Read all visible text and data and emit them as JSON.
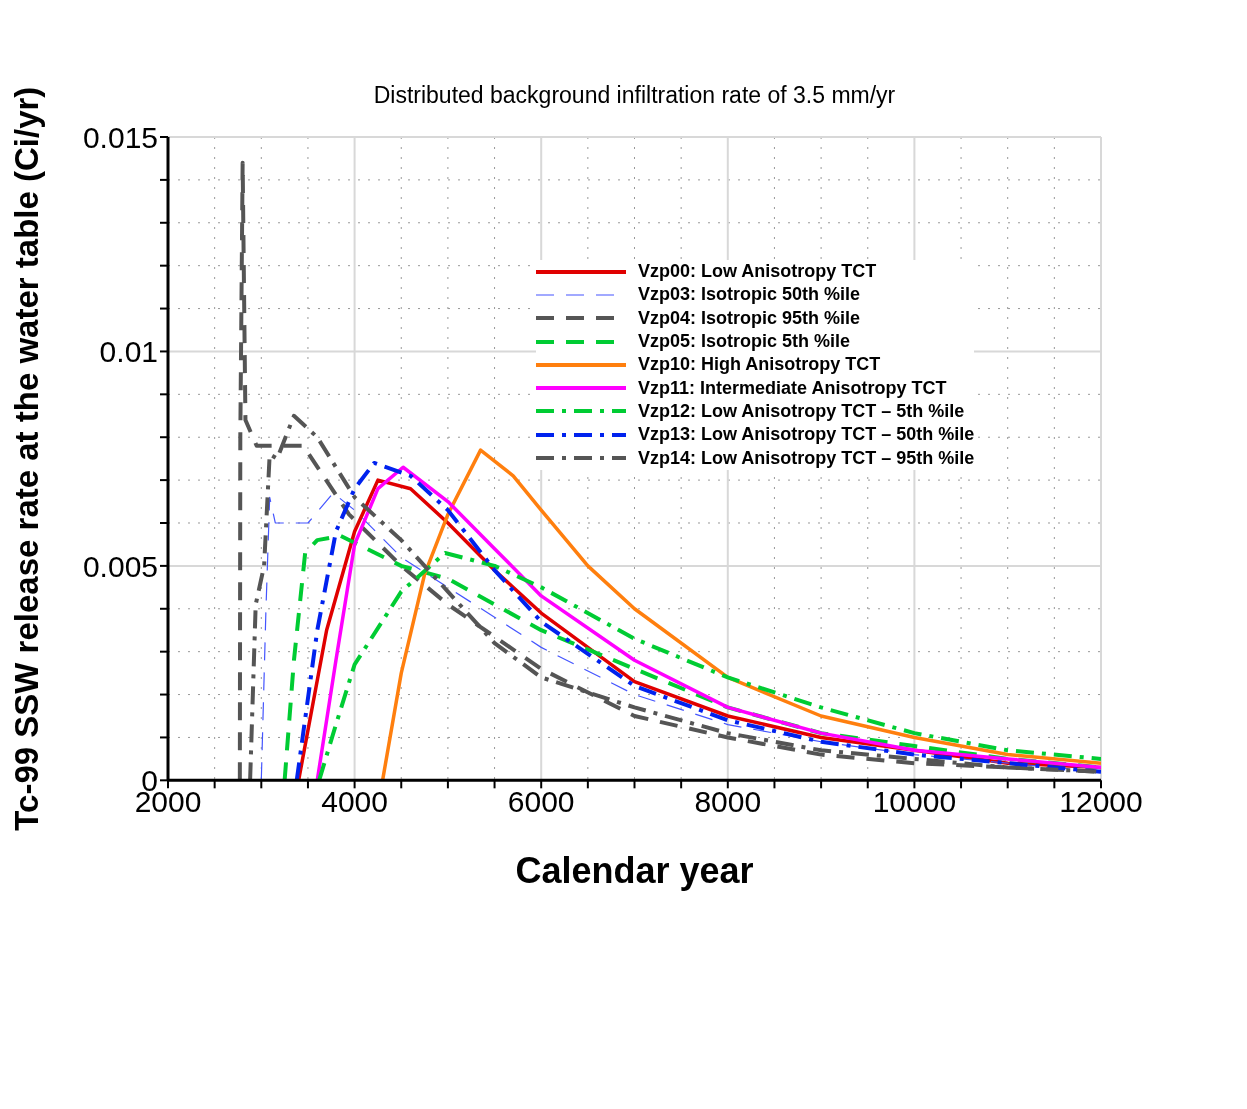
{
  "chart_data": {
    "type": "line",
    "title": "Distributed background infiltration rate of 3.5 mm/yr",
    "xlabel": "Calendar year",
    "ylabel": "Tc-99 SSW release rate at the water table (Ci/yr)",
    "xlim": [
      2000,
      12000
    ],
    "xticks": [
      2000,
      {
        "value": 2500,
        "label": null
      },
      {
        "value": 3000,
        "label": null
      },
      {
        "value": 3500,
        "label": null
      },
      4000,
      {
        "value": 4500,
        "label": null
      },
      {
        "value": 5000,
        "label": null
      },
      {
        "value": 5500,
        "label": null
      },
      6000,
      {
        "value": 6500,
        "label": null
      },
      {
        "value": 7000,
        "label": null
      },
      {
        "value": 7500,
        "label": null
      },
      8000,
      {
        "value": 8500,
        "label": null
      },
      {
        "value": 9000,
        "label": null
      },
      {
        "value": 9500,
        "label": null
      },
      10000,
      {
        "value": 10500,
        "label": null
      },
      {
        "value": 11000,
        "label": null
      },
      {
        "value": 11500,
        "label": null
      },
      12000
    ],
    "ylim": [
      0,
      0.015
    ],
    "yticks": [
      0,
      {
        "value": 0.001,
        "label": null
      },
      {
        "value": 0.002,
        "label": null
      },
      {
        "value": 0.003,
        "label": null
      },
      {
        "value": 0.004,
        "label": null
      },
      0.005,
      {
        "value": 0.006,
        "label": null
      },
      {
        "value": 0.007,
        "label": null
      },
      {
        "value": 0.008,
        "label": null
      },
      {
        "value": 0.009,
        "label": null
      },
      0.01,
      {
        "value": 0.011,
        "label": null
      },
      {
        "value": 0.012,
        "label": null
      },
      {
        "value": 0.013,
        "label": null
      },
      {
        "value": 0.014,
        "label": null
      },
      0.015
    ],
    "grid": true,
    "legend": "top right",
    "marker": "none",
    "series": [
      {
        "name": "Vzp00: Low Anisotropy TCT",
        "color": "#e00000",
        "line_style": "solid",
        "x": [
          3400,
          3700,
          4000,
          4250,
          4600,
          5000,
          5500,
          6000,
          7000,
          8000,
          9000,
          10000,
          11000,
          12000
        ],
        "values": [
          0,
          0.0035,
          0.0058,
          0.007,
          0.0068,
          0.006,
          0.0049,
          0.0039,
          0.0023,
          0.0015,
          0.001,
          0.0007,
          0.0004,
          0.0003
        ]
      },
      {
        "name": "Vzp03: Isotropic 50th %ile",
        "color": "#4455ff",
        "line_style": "dashed",
        "x": [
          3000,
          3050,
          3090,
          3150,
          3500,
          3770,
          4000,
          4500,
          5000,
          6000,
          7000,
          8000,
          9000,
          10000,
          11000,
          12000
        ],
        "values": [
          0,
          0.004,
          0.0066,
          0.006,
          0.006,
          0.0067,
          0.0063,
          0.0052,
          0.0045,
          0.0031,
          0.002,
          0.0013,
          0.0009,
          0.0006,
          0.0004,
          0.0002
        ]
      },
      {
        "name": "Vzp04: Isotropic 95th %ile",
        "color": "#555555",
        "line_style": "dashed",
        "x": [
          2770,
          2775,
          2800,
          2830,
          2950,
          3150,
          3450,
          3940,
          4500,
          5000,
          6000,
          7000,
          8000,
          9000,
          10000,
          11000,
          12000
        ],
        "values": [
          0,
          0.008,
          0.0144,
          0.0084,
          0.0078,
          0.0078,
          0.0078,
          0.0062,
          0.005,
          0.0041,
          0.0026,
          0.0015,
          0.001,
          0.0006,
          0.0004,
          0.0003,
          0.0002
        ]
      },
      {
        "name": "Vzp05: Isotropic 5th %ile",
        "color": "#00cc33",
        "line_style": "dashed",
        "x": [
          3250,
          3350,
          3470,
          3600,
          3850,
          4500,
          5000,
          6000,
          7000,
          8000,
          9000,
          10000,
          11000,
          12000
        ],
        "values": [
          0,
          0.0028,
          0.0053,
          0.0056,
          0.0057,
          0.005,
          0.0047,
          0.0035,
          0.0026,
          0.0017,
          0.0011,
          0.0008,
          0.0005,
          0.0003
        ]
      },
      {
        "name": "Vzp10: High Anisotropy TCT",
        "color": "#ff7f0e",
        "line_style": "solid",
        "x": [
          4300,
          4500,
          4750,
          5000,
          5350,
          5700,
          6000,
          6500,
          7000,
          8000,
          9000,
          10000,
          11000,
          12000
        ],
        "values": [
          0,
          0.0025,
          0.0048,
          0.0062,
          0.0077,
          0.0071,
          0.0063,
          0.005,
          0.004,
          0.0024,
          0.0015,
          0.001,
          0.0006,
          0.0004
        ]
      },
      {
        "name": "Vzp11: Intermediate Anisotropy TCT",
        "color": "#ff00ff",
        "line_style": "solid",
        "x": [
          3600,
          3800,
          4000,
          4250,
          4520,
          5000,
          5500,
          6000,
          7000,
          8000,
          9000,
          10000,
          11000,
          12000
        ],
        "values": [
          0,
          0.0028,
          0.0055,
          0.0068,
          0.0073,
          0.0065,
          0.0054,
          0.0043,
          0.0028,
          0.0017,
          0.0011,
          0.0007,
          0.0005,
          0.0003
        ]
      },
      {
        "name": "Vzp12: Low Anisotropy TCT – 5th %ile",
        "color": "#00cc33",
        "line_style": "dashdot",
        "x": [
          3620,
          3800,
          4000,
          4500,
          4970,
          5500,
          6000,
          7000,
          8000,
          9000,
          10000,
          11000,
          12000
        ],
        "values": [
          0,
          0.0013,
          0.0027,
          0.0044,
          0.0053,
          0.005,
          0.0045,
          0.0033,
          0.0024,
          0.0017,
          0.0011,
          0.0007,
          0.0005
        ]
      },
      {
        "name": "Vzp13: Low Anisotropy TCT – 50th %ile",
        "color": "#0022ee",
        "line_style": "dashdot",
        "x": [
          3380,
          3600,
          3800,
          4000,
          4210,
          4600,
          5000,
          5500,
          6000,
          7000,
          8000,
          9000,
          10000,
          11000,
          12000
        ],
        "values": [
          0,
          0.0035,
          0.0058,
          0.0068,
          0.0074,
          0.0071,
          0.0063,
          0.0049,
          0.0037,
          0.0022,
          0.0014,
          0.0009,
          0.0006,
          0.0004,
          0.0002
        ]
      },
      {
        "name": "Vzp14: Low Anisotropy TCT – 95th %ile",
        "color": "#555555",
        "line_style": "dashdot",
        "x": [
          2880,
          2940,
          3030,
          3090,
          3170,
          3350,
          3600,
          4000,
          4500,
          5000,
          5500,
          6000,
          7000,
          8000,
          9000,
          10000,
          11000,
          12000
        ],
        "values": [
          0,
          0.0041,
          0.005,
          0.0076,
          0.0075,
          0.0085,
          0.008,
          0.0066,
          0.0056,
          0.0044,
          0.0032,
          0.0024,
          0.0017,
          0.0011,
          0.0007,
          0.0005,
          0.0003,
          0.0002
        ]
      }
    ]
  }
}
